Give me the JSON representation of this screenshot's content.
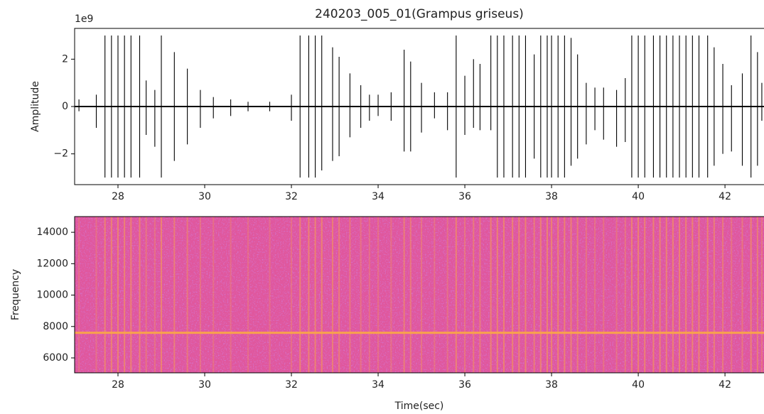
{
  "chart_data": [
    {
      "type": "waveform",
      "title": "240203_005_01(Grampus griseus)",
      "ylabel": "Amplitude",
      "y_offset_label": "1e9",
      "color": "#000000",
      "xlim": [
        27,
        42.9
      ],
      "ylim": [
        -3.3,
        3.3
      ],
      "xticks": [
        28,
        30,
        32,
        34,
        36,
        38,
        40,
        42
      ],
      "yticks": [
        {
          "value": -2,
          "label": "−2"
        },
        0,
        2
      ],
      "x": [
        27.1,
        27.5,
        27.7,
        27.85,
        28.0,
        28.15,
        28.3,
        28.5,
        28.65,
        28.85,
        29.0,
        29.3,
        29.6,
        29.9,
        30.2,
        30.6,
        31.0,
        31.5,
        32.0,
        32.2,
        32.4,
        32.55,
        32.7,
        32.95,
        33.1,
        33.35,
        33.6,
        33.8,
        34.0,
        34.3,
        34.6,
        34.75,
        35.0,
        35.3,
        35.6,
        35.8,
        36.0,
        36.2,
        36.35,
        36.6,
        36.75,
        36.9,
        37.1,
        37.25,
        37.4,
        37.6,
        37.75,
        37.9,
        38.0,
        38.15,
        38.3,
        38.45,
        38.6,
        38.8,
        39.0,
        39.2,
        39.5,
        39.7,
        39.85,
        40.0,
        40.15,
        40.35,
        40.5,
        40.65,
        40.8,
        40.95,
        41.1,
        41.25,
        41.4,
        41.6,
        41.75,
        41.95,
        42.15,
        42.4,
        42.6,
        42.75,
        42.85
      ],
      "max": [
        0.3,
        0.5,
        3,
        3,
        3,
        3,
        3,
        3,
        1.1,
        0.7,
        3,
        2.3,
        1.6,
        0.7,
        0.4,
        0.3,
        0.2,
        0.2,
        0.5,
        3,
        3,
        3,
        3,
        2.5,
        2.1,
        1.4,
        0.9,
        0.5,
        0.5,
        0.6,
        2.4,
        1.9,
        1.0,
        0.6,
        0.6,
        3,
        1.3,
        2.0,
        1.8,
        3,
        3,
        3,
        3,
        3,
        3,
        2.2,
        3,
        3,
        3,
        3,
        3,
        2.9,
        2.2,
        1.0,
        0.8,
        0.8,
        0.7,
        1.2,
        3,
        3,
        3,
        3,
        3,
        3,
        3,
        3,
        3,
        3,
        3,
        3,
        2.5,
        1.8,
        0.9,
        1.4,
        3,
        2.3,
        1.0
      ],
      "min": [
        -0.2,
        -0.9,
        -3,
        -3,
        -3,
        -3,
        -3,
        -3,
        -1.2,
        -1.7,
        -3,
        -2.3,
        -1.6,
        -0.9,
        -0.5,
        -0.4,
        -0.2,
        -0.2,
        -0.6,
        -3,
        -3,
        -3,
        -2.7,
        -2.3,
        -2.1,
        -1.3,
        -0.9,
        -0.6,
        -0.4,
        -0.6,
        -1.9,
        -1.9,
        -1.1,
        -0.5,
        -1.0,
        -3,
        -1.2,
        -0.9,
        -1.0,
        -1.0,
        -3,
        -3,
        -3,
        -3,
        -3,
        -2.2,
        -3,
        -3,
        -3,
        -3,
        -3,
        -2.5,
        -2.2,
        -1.6,
        -1.0,
        -1.4,
        -1.7,
        -1.5,
        -3,
        -3,
        -3,
        -3,
        -3,
        -3,
        -3,
        -3,
        -3,
        -3,
        -3,
        -3,
        -2.5,
        -2.0,
        -1.9,
        -2.5,
        -3,
        -2.5,
        -0.6
      ]
    },
    {
      "type": "spectrogram",
      "xlabel": "Time(sec)",
      "ylabel": "Frequency",
      "xlim": [
        27,
        42.9
      ],
      "ylim": [
        5050,
        15000
      ],
      "xticks": [
        28,
        30,
        32,
        34,
        36,
        38,
        40,
        42
      ],
      "yticks": [
        6000,
        8000,
        10000,
        12000,
        14000
      ],
      "tone_frequency": 7600,
      "background_color": "#e0579d",
      "low_color": "#9b45d8",
      "high_color": "#f8a24c"
    }
  ]
}
